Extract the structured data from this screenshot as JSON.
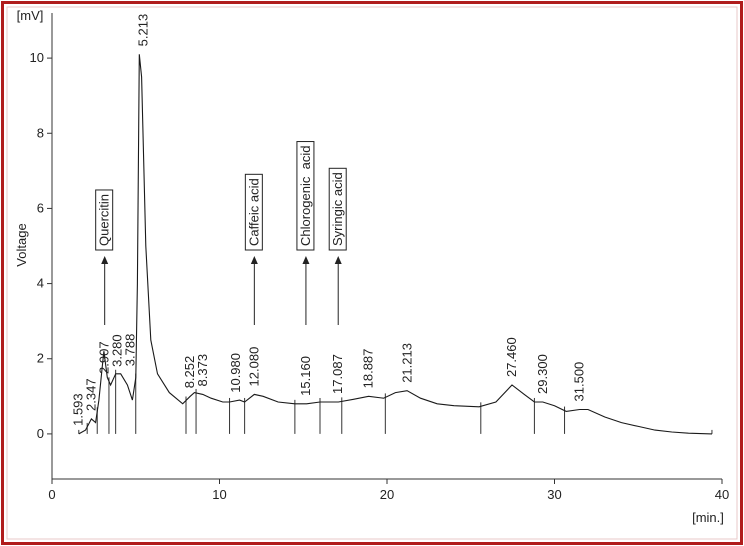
{
  "chart_data": {
    "type": "line",
    "y_label": "Voltage",
    "y_unit": "[mV]",
    "x_unit": "[min.]",
    "color": "#1a1a1a",
    "xlim": [
      0,
      40
    ],
    "ylim": [
      -1.2,
      11.2
    ],
    "xticks": [
      0,
      10,
      20,
      30,
      40
    ],
    "yticks": [
      0,
      2,
      4,
      6,
      8,
      10
    ],
    "grid": false,
    "x": [
      1.6,
      2.0,
      2.35,
      2.6,
      2.8,
      3.0,
      3.1,
      3.3,
      3.5,
      3.8,
      4.1,
      4.5,
      4.8,
      5.0,
      5.1,
      5.213,
      5.35,
      5.6,
      5.9,
      6.3,
      7.0,
      7.8,
      8.25,
      8.5,
      9.0,
      9.5,
      10.2,
      10.6,
      11.2,
      11.5,
      12.08,
      12.6,
      13.5,
      14.5,
      15.2,
      16.0,
      17.1,
      18.0,
      18.9,
      19.8,
      20.5,
      21.2,
      22.0,
      23.0,
      24.0,
      25.5,
      26.5,
      27.46,
      28.2,
      28.8,
      29.3,
      30.0,
      30.7,
      31.5,
      32.0,
      33.0,
      34.0,
      35.0,
      36.0,
      37.0,
      38.0,
      39.4
    ],
    "values": [
      0,
      0.1,
      0.4,
      0.3,
      0.9,
      1.8,
      2.2,
      1.5,
      1.3,
      1.6,
      1.6,
      1.3,
      0.9,
      1.5,
      4.0,
      10.1,
      9.5,
      5.0,
      2.5,
      1.6,
      1.1,
      0.8,
      1.0,
      1.1,
      1.05,
      0.95,
      0.85,
      0.85,
      0.9,
      0.85,
      1.05,
      1.0,
      0.85,
      0.8,
      0.8,
      0.85,
      0.85,
      0.92,
      1.0,
      0.95,
      1.1,
      1.15,
      0.95,
      0.8,
      0.75,
      0.72,
      0.85,
      1.3,
      1.05,
      0.85,
      0.85,
      0.75,
      0.6,
      0.65,
      0.65,
      0.45,
      0.3,
      0.2,
      0.1,
      0.05,
      0.02,
      0
    ],
    "peak_times": [
      1.593,
      2.347,
      2.907,
      3.28,
      3.788,
      5.213,
      8.252,
      8.373,
      10.98,
      12.08,
      15.16,
      17.087,
      18.887,
      21.213,
      27.46,
      29.3,
      31.5
    ],
    "peak_labels": [
      "1.593",
      "2.347",
      "2.907",
      "3.280",
      "3.788",
      "5.213",
      "8.252",
      "8.373",
      "10.980",
      "12.080",
      "15.160",
      "17.087",
      "18.887",
      "21.213",
      "27.460",
      "29.300",
      "31.500"
    ],
    "integration_marks": [
      1.6,
      2.1,
      2.7,
      3.4,
      3.8,
      5.0,
      8.0,
      8.6,
      10.6,
      11.5,
      14.5,
      16.0,
      17.3,
      19.9,
      25.6,
      28.8,
      30.6,
      39.4
    ],
    "annotations": [
      {
        "text": "Quercitin",
        "peak": 2
      },
      {
        "text": "Caffeic acid",
        "peak": 9
      },
      {
        "text": "Chlorogenic  acid",
        "peak": 10
      },
      {
        "text": "Syringic acid",
        "peak": 11
      }
    ]
  }
}
